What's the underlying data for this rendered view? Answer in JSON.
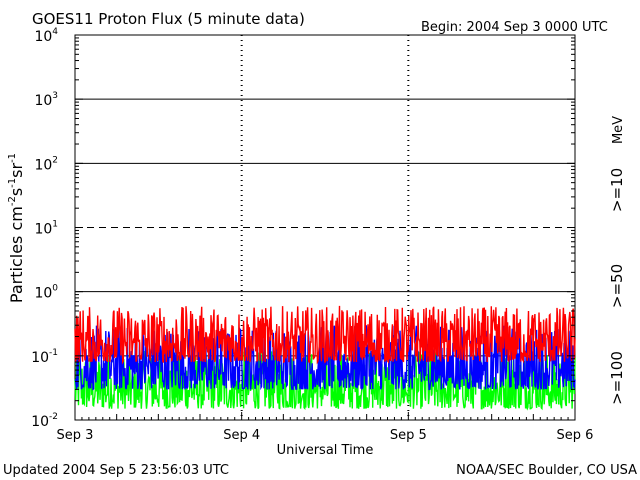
{
  "chart_data": {
    "type": "line",
    "title": "GOES11 Proton Flux (5 minute data)",
    "begin": "Begin: 2004 Sep 3 0000 UTC",
    "xlabel": "Universal Time",
    "ylabel": "Particles cm-2s-1sr-1",
    "yscale": "log",
    "ylim_exp": [
      -2,
      4
    ],
    "y_ticks": [
      {
        "base": "10",
        "exp": "-2"
      },
      {
        "base": "10",
        "exp": "-1"
      },
      {
        "base": "10",
        "exp": "0"
      },
      {
        "base": "10",
        "exp": "1"
      },
      {
        "base": "10",
        "exp": "2"
      },
      {
        "base": "10",
        "exp": "3"
      },
      {
        "base": "10",
        "exp": "4"
      }
    ],
    "x_ticks": [
      "Sep 3",
      "Sep 4",
      "Sep 5",
      "Sep 6"
    ],
    "x_range_days": [
      0,
      3
    ],
    "threshold_lines": [
      {
        "value": 1,
        "style": "solid"
      },
      {
        "value": 10,
        "style": "dashed"
      },
      {
        "value": 100,
        "style": "solid"
      },
      {
        "value": 1000,
        "style": "solid"
      },
      {
        "value": 0.1,
        "style": "solid"
      }
    ],
    "series": [
      {
        "name": ">=10",
        "units": "MeV",
        "color": "#ff0000",
        "range": [
          0.08,
          0.6
        ]
      },
      {
        "name": ">=50",
        "color": "#0000ff",
        "range": [
          0.03,
          0.3
        ]
      },
      {
        "name": ">=100",
        "color": "#00ff00",
        "range": [
          0.015,
          0.12
        ]
      }
    ],
    "units_label": "MeV"
  },
  "footer": {
    "updated": "Updated 2004 Sep  5 23:56:03 UTC",
    "credit": "NOAA/SEC Boulder, CO USA"
  }
}
